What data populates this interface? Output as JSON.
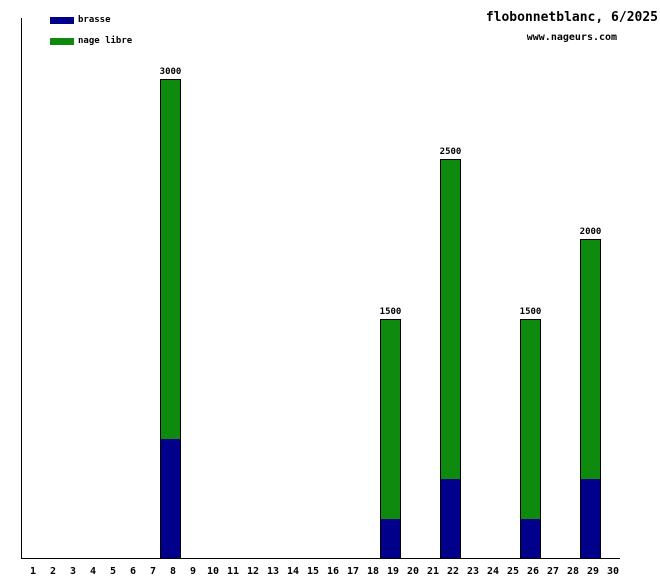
{
  "header": {
    "title": "flobonnetblanc, 6/2025",
    "url": "www.nageurs.com"
  },
  "legend": {
    "items": [
      {
        "label": "brasse",
        "color": "#00008B"
      },
      {
        "label": "nage libre",
        "color": "#0E8A0E"
      }
    ]
  },
  "colors": {
    "brasse": "#00008B",
    "nage_libre": "#0E8A0E",
    "axis": "#000000",
    "background": "#FFFFFF"
  },
  "chart_data": {
    "type": "bar",
    "stacked": true,
    "title": "flobonnetblanc, 6/2025",
    "subtitle": "www.nageurs.com",
    "xlabel": "",
    "ylabel": "",
    "x_ticks": [
      1,
      2,
      3,
      4,
      5,
      6,
      7,
      8,
      9,
      10,
      11,
      12,
      13,
      14,
      15,
      16,
      17,
      18,
      19,
      20,
      21,
      22,
      23,
      24,
      25,
      26,
      27,
      28,
      29,
      30
    ],
    "series_names": [
      "brasse",
      "nage libre"
    ],
    "legend_position": "top-left",
    "grid": false,
    "y_axis_labels_visible": false,
    "bars": [
      {
        "day": 8,
        "brasse": 750,
        "nage_libre": 2250,
        "total": 3000,
        "total_label": "3000"
      },
      {
        "day": 19,
        "brasse": 250,
        "nage_libre": 1250,
        "total": 1500,
        "total_label": "1500"
      },
      {
        "day": 22,
        "brasse": 500,
        "nage_libre": 2000,
        "total": 2500,
        "total_label": "2500"
      },
      {
        "day": 26,
        "brasse": 250,
        "nage_libre": 1250,
        "total": 1500,
        "total_label": "1500"
      },
      {
        "day": 29,
        "brasse": 500,
        "nage_libre": 1500,
        "total": 2000,
        "total_label": "2000"
      }
    ]
  }
}
